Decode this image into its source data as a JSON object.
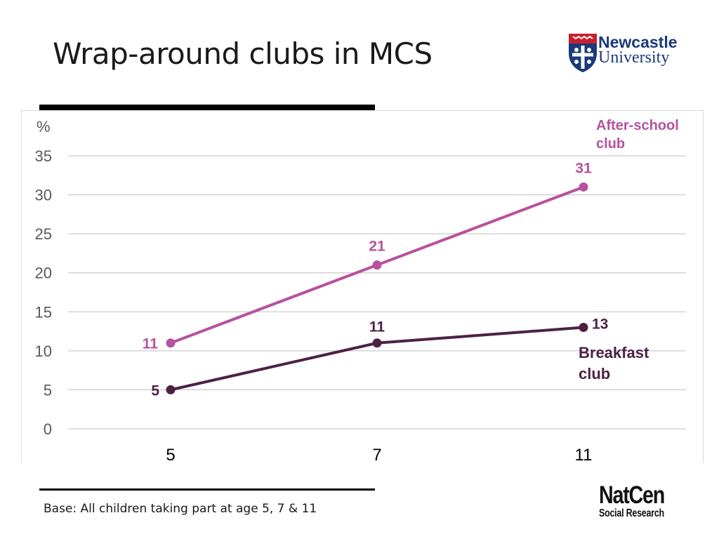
{
  "slide": {
    "title": "Wrap-around clubs in MCS",
    "footnote": "Base: All children taking part at age 5, 7 & 11"
  },
  "logos": {
    "university_line1": "Newcastle",
    "university_line2": "University",
    "natcen_main": "NatCen",
    "natcen_sub": "Social Research"
  },
  "colors": {
    "after_school": "#b7519f",
    "breakfast": "#4d2146",
    "grid": "#bfbfbf",
    "axis_text": "#595959",
    "uni_blue": "#1b3a7a",
    "uni_red": "#c8202e"
  },
  "chart_data": {
    "type": "line",
    "categories": [
      "5",
      "7",
      "11"
    ],
    "ylabel": "%",
    "ylim": [
      0,
      35
    ],
    "yticks": [
      0,
      5,
      10,
      15,
      20,
      25,
      30,
      35
    ],
    "grid": true,
    "series": [
      {
        "name": "After-school club",
        "label_lines": [
          "After-school",
          "club"
        ],
        "values": [
          11,
          21,
          31
        ],
        "color": "#b7519f"
      },
      {
        "name": "Breakfast club",
        "label_lines": [
          "Breakfast",
          "club"
        ],
        "values": [
          5,
          11,
          13
        ],
        "color": "#4d2146"
      }
    ]
  }
}
